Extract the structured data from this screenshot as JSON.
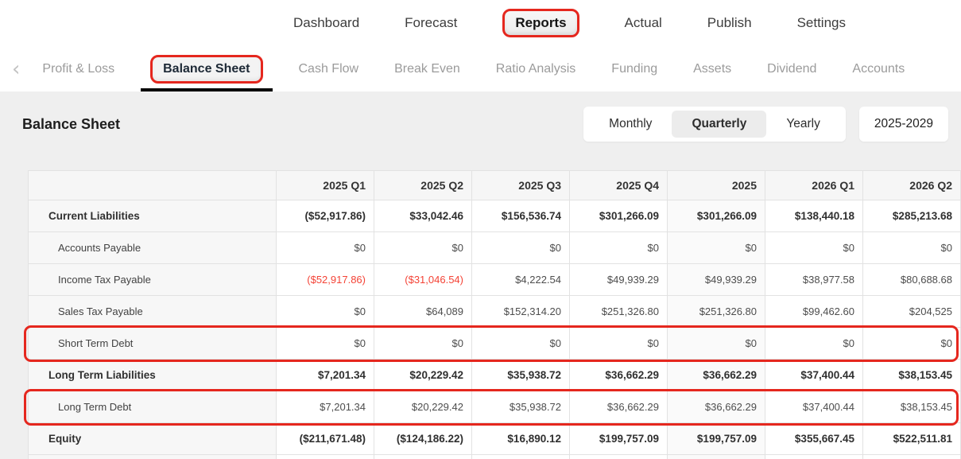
{
  "top_nav": {
    "items": [
      {
        "label": "Dashboard",
        "active": false
      },
      {
        "label": "Forecast",
        "active": false
      },
      {
        "label": "Reports",
        "active": true,
        "annotated": true
      },
      {
        "label": "Actual",
        "active": false
      },
      {
        "label": "Publish",
        "active": false
      },
      {
        "label": "Settings",
        "active": false
      }
    ]
  },
  "report_tabs": {
    "back_icon": "‹",
    "items": [
      {
        "label": "Profit & Loss",
        "active": false
      },
      {
        "label": "Balance Sheet",
        "active": true,
        "annotated": true
      },
      {
        "label": "Cash Flow",
        "active": false
      },
      {
        "label": "Break Even",
        "active": false
      },
      {
        "label": "Ratio Analysis",
        "active": false
      },
      {
        "label": "Funding",
        "active": false
      },
      {
        "label": "Assets",
        "active": false
      },
      {
        "label": "Dividend",
        "active": false
      },
      {
        "label": "Accounts",
        "active": false
      }
    ]
  },
  "page": {
    "title": "Balance Sheet"
  },
  "controls": {
    "period_options": [
      "Monthly",
      "Quarterly",
      "Yearly"
    ],
    "period_selected": "Quarterly",
    "year_range": "2025-2029"
  },
  "table": {
    "columns": [
      "",
      "2025 Q1",
      "2025 Q2",
      "2025 Q3",
      "2025 Q4",
      "2025",
      "2026 Q1",
      "2026 Q2"
    ],
    "year_total_column_index": 5,
    "rows": [
      {
        "label": "Current Liabilities",
        "bold": true,
        "indent": false,
        "annotated": false,
        "values": [
          "($52,917.86)",
          "$33,042.46",
          "$156,536.74",
          "$301,266.09",
          "$301,266.09",
          "$138,440.18",
          "$285,213.68"
        ]
      },
      {
        "label": "Accounts Payable",
        "bold": false,
        "indent": true,
        "annotated": false,
        "values": [
          "$0",
          "$0",
          "$0",
          "$0",
          "$0",
          "$0",
          "$0"
        ]
      },
      {
        "label": "Income Tax Payable",
        "bold": false,
        "indent": true,
        "annotated": false,
        "values": [
          "($52,917.86)",
          "($31,046.54)",
          "$4,222.54",
          "$49,939.29",
          "$49,939.29",
          "$38,977.58",
          "$80,688.68"
        ]
      },
      {
        "label": "Sales Tax Payable",
        "bold": false,
        "indent": true,
        "annotated": false,
        "values": [
          "$0",
          "$64,089",
          "$152,314.20",
          "$251,326.80",
          "$251,326.80",
          "$99,462.60",
          "$204,525"
        ]
      },
      {
        "label": "Short Term Debt",
        "bold": false,
        "indent": true,
        "annotated": true,
        "values": [
          "$0",
          "$0",
          "$0",
          "$0",
          "$0",
          "$0",
          "$0"
        ]
      },
      {
        "label": "Long Term Liabilities",
        "bold": true,
        "indent": false,
        "annotated": false,
        "values": [
          "$7,201.34",
          "$20,229.42",
          "$35,938.72",
          "$36,662.29",
          "$36,662.29",
          "$37,400.44",
          "$38,153.45"
        ]
      },
      {
        "label": "Long Term Debt",
        "bold": false,
        "indent": true,
        "annotated": true,
        "values": [
          "$7,201.34",
          "$20,229.42",
          "$35,938.72",
          "$36,662.29",
          "$36,662.29",
          "$37,400.44",
          "$38,153.45"
        ]
      },
      {
        "label": "Equity",
        "bold": true,
        "indent": false,
        "annotated": false,
        "values": [
          "($211,671.48)",
          "($124,186.22)",
          "$16,890.12",
          "$199,757.09",
          "$199,757.09",
          "$355,667.45",
          "$522,511.81"
        ]
      }
    ]
  },
  "colors": {
    "annotation_red": "#e5271e",
    "negative_red": "#f44336"
  }
}
